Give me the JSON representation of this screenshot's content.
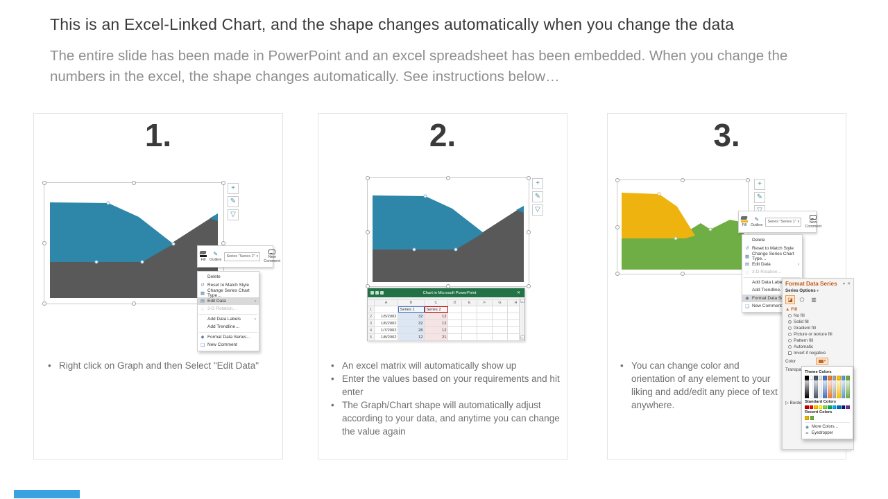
{
  "slide": {
    "title": "This is an Excel-Linked Chart, and the shape changes automatically when you change the data",
    "subtitle": "The entire slide has been made in PowerPoint and an excel spreadsheet has been embedded. When you change the numbers in the excel, the shape changes automatically. See instructions below…"
  },
  "steps": [
    {
      "number": "1.",
      "bullets": [
        "Right click on Graph and then Select \"Edit Data\""
      ]
    },
    {
      "number": "2.",
      "bullets": [
        "An excel matrix will automatically show up",
        "Enter the values based on your requirements and hit enter",
        "The Graph/Chart shape will automatically adjust according to your data, and anytime you can change the value again"
      ]
    },
    {
      "number": "3.",
      "bullets": [
        "You can change color and orientation of any element to your liking and add/edit any piece of text anywhere."
      ]
    }
  ],
  "icons": {
    "add_chart_element": "+",
    "chart_style_brush": "✎",
    "chart_filter_funnel": "▽",
    "close": "✕",
    "caret_down": "▾",
    "submenu_arrow": "›",
    "reset_style": "↺",
    "chart_type": "▦",
    "edit_data": "▤",
    "rotation": "◇",
    "format_series": "◆",
    "comment": "❑",
    "more_colors": "◉",
    "eyedropper": "✒",
    "scroll_up": "▴",
    "scroll_down": "▾"
  },
  "minibar": {
    "fill": "Fill",
    "outline": "Outline",
    "series_step1": "Series \"Series 2\"",
    "series_step3": "Series \"Series 1\"",
    "new_comment": "New Comment"
  },
  "context_menu": {
    "items": [
      {
        "label": "Delete"
      },
      {
        "label": "Reset to Match Style"
      },
      {
        "label": "Change Series Chart Type…"
      },
      {
        "label": "Edit Data"
      },
      {
        "label": "3-D Rotation…"
      },
      {
        "label": "Add Data Labels"
      },
      {
        "label": "Add Trendline…"
      },
      {
        "label": "Format Data Series…"
      },
      {
        "label": "New Comment"
      }
    ],
    "highlighted_step1": "Edit Data",
    "highlighted_step3": "Format Data Series…"
  },
  "excel_window": {
    "title": "Chart in Microsoft PowerPoint",
    "close_label": "✕",
    "column_headers": [
      "A",
      "B",
      "C",
      "D",
      "E",
      "F",
      "G",
      "H"
    ],
    "rows": [
      {
        "n": "1",
        "a": "",
        "b": "Series 1",
        "c": "Series 2"
      },
      {
        "n": "2",
        "a": "1/5/2002",
        "b": "32",
        "c": "12"
      },
      {
        "n": "3",
        "a": "1/6/2002",
        "b": "32",
        "c": "12"
      },
      {
        "n": "4",
        "a": "1/7/2002",
        "b": "28",
        "c": "12"
      },
      {
        "n": "5",
        "a": "1/8/2002",
        "b": "12",
        "c": "21"
      }
    ]
  },
  "format_panel": {
    "title": "Format Data Series",
    "series_options_label": "Series Options",
    "fill_header": "Fill",
    "options": [
      "No fill",
      "Solid fill",
      "Gradient fill",
      "Picture or texture fill",
      "Pattern fill",
      "Automatic",
      "Invert if negative"
    ],
    "selected_option": "Solid fill",
    "color_label": "Color",
    "transparency_label": "Transparency",
    "border_label": "Border",
    "color_menu": {
      "theme_label": "Theme Colors",
      "standard_label": "Standard Colors",
      "recent_label": "Recent Colors",
      "more_label": "More Colors…",
      "eyedropper_label": "Eyedropper",
      "theme_colors": [
        "#000000",
        "#ffffff",
        "#44546a",
        "#e7e6e6",
        "#4472c4",
        "#ed7d31",
        "#a5a5a5",
        "#ffc000",
        "#5b9bd5",
        "#70ad47"
      ],
      "standard_colors": [
        "#c00000",
        "#ff0000",
        "#ffc000",
        "#ffff00",
        "#92d050",
        "#00b050",
        "#00b0f0",
        "#0070c0",
        "#002060",
        "#7030a0"
      ],
      "recent_colors": [
        "#eeb500",
        "#6fae44"
      ]
    }
  },
  "chart_data": {
    "type": "area",
    "x": [
      "1/5/2002",
      "1/6/2002",
      "1/7/2002",
      "1/8/2002"
    ],
    "series": [
      {
        "name": "Series 1",
        "values": [
          32,
          32,
          28,
          12
        ]
      },
      {
        "name": "Series 2",
        "values": [
          12,
          12,
          12,
          21
        ]
      }
    ],
    "legend": "none",
    "grid": false
  },
  "colors": {
    "chart_blue": "#2e86a8",
    "chart_gray": "#595959",
    "chart_yellow": "#efb310",
    "chart_green": "#6fae44",
    "excel_green": "#217346",
    "panel_title_orange": "#c55a11",
    "accent_blue": "#3aa2e0"
  }
}
